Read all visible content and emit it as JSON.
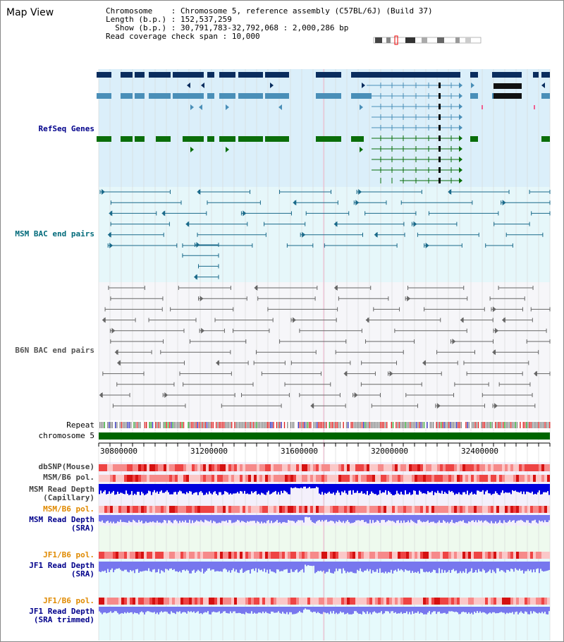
{
  "page_title": "Map View",
  "info": {
    "chromosome_label": "Chromosome",
    "chromosome_value": "Chromosome 5, reference assembly (C57BL/6J) (Build 37)",
    "length_label": "Length (b.p.)",
    "length_value": "152,537,259",
    "show_label": "Show (b.p.)",
    "show_value": "30,791,783-32,792,068 : 2,000,286 bp",
    "span_label": "Read coverage check span",
    "span_value": "10,000"
  },
  "tracks": {
    "refseq": "RefSeq Genes",
    "msm_bac": "MSM BAC end pairs",
    "b6n_bac": "B6N BAC end pairs",
    "repeat": "Repeat",
    "chromosome": "chromosome 5",
    "dbsnp": "dbSNP(Mouse)",
    "msm_b6_pol": "MSM/B6 pol.",
    "msm_read_depth_cap_1": "MSM Read Depth",
    "msm_read_depth_cap_2": "(Capillary)",
    "msm_b6_pol_2": "MSM/B6 pol.",
    "msm_read_depth_sra_1": "MSM Read Depth",
    "msm_read_depth_sra_2": "(SRA)",
    "jf1_b6_pol": "JF1/B6 pol.",
    "jf1_read_depth_sra_1": "JF1 Read Depth",
    "jf1_read_depth_sra_2": "(SRA)",
    "jf1_b6_pol_2": "JF1/B6 pol.",
    "jf1_read_depth_trim_1": "JF1 Read Depth",
    "jf1_read_depth_trim_2": "(SRA trimmed)"
  },
  "axis_ticks": [
    "30800000",
    "31200000",
    "31600000",
    "32000000",
    "32400000"
  ],
  "colors": {
    "gene_dark": "#0a2d5e",
    "gene_mid": "#4a8fb8",
    "gene_green": "#0a6e0a",
    "msm_bac": "#1a6a8a",
    "b6n_bac": "#666666",
    "depth_blue": "#0000dd",
    "depth_light": "#7777ee",
    "label_navy": "#00008b",
    "label_teal": "#006a7a",
    "label_orange": "#e08a00"
  }
}
